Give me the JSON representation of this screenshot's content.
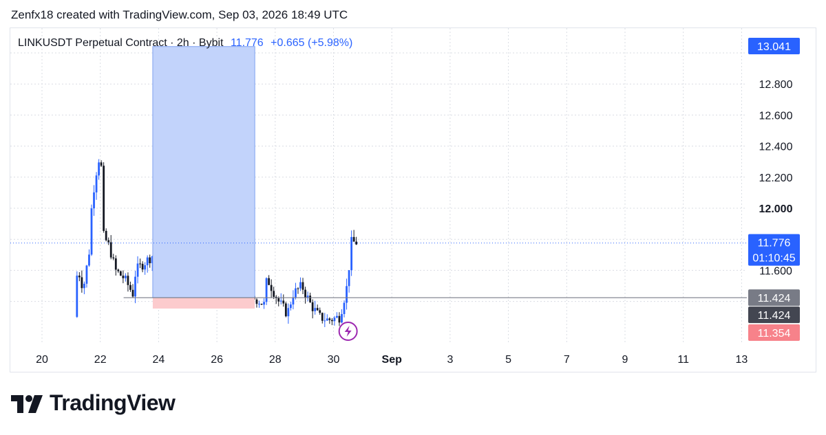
{
  "header": {
    "text": "Zenfx18 created with TradingView.com, Sep 03, 2026 18:49 UTC"
  },
  "legend": {
    "symbol": "LINKUSDT Perpetual Contract · 2h · Bybit",
    "last": "11.776",
    "change": "+0.665 (+5.98%)"
  },
  "brand": {
    "name": "TradingView",
    "icon": "tradingview-logo-icon"
  },
  "colors": {
    "up": "#2962ff",
    "down": "#131722",
    "target_zone": "#c2d3fb",
    "stop_zone": "#fccbcd",
    "grid": "#d9dce3",
    "price_line": "#2962ff"
  },
  "chart_data": {
    "type": "candlestick",
    "x_ticks": [
      "20",
      "22",
      "24",
      "26",
      "28",
      "30",
      "Sep",
      "3",
      "5",
      "7",
      "9",
      "11",
      "13"
    ],
    "y_ticks": [
      "12.800",
      "12.600",
      "12.400",
      "12.200",
      "12.000",
      "11.600"
    ],
    "ylim": [
      11.3,
      13.1
    ],
    "grid": true,
    "price_labels": [
      {
        "text": "13.041",
        "value": 13.041,
        "bg": "#2962ff",
        "fg": "#ffffff"
      },
      {
        "text": "11.776",
        "value": 11.776,
        "bg": "#2962ff",
        "fg": "#ffffff",
        "sub": "01:10:45"
      },
      {
        "text": "11.424",
        "value": 11.424,
        "bg": "#787b86",
        "fg": "#ffffff"
      },
      {
        "text": "11.424",
        "value": 11.424,
        "bg": "#434651",
        "fg": "#ffffff",
        "row": 2
      },
      {
        "text": "11.354",
        "value": 11.354,
        "bg": "#f7828a",
        "fg": "#ffffff"
      }
    ],
    "current_price": 11.776,
    "entry_price": 11.424,
    "position": {
      "entry": 11.424,
      "target": 13.041,
      "stop": 11.354,
      "x_start": 13.8,
      "x_end": 17.3
    },
    "keypoints": [
      {
        "t": 11.2,
        "v": 11.3
      },
      {
        "t": 11.3,
        "v": 11.62
      },
      {
        "t": 11.5,
        "v": 11.48
      },
      {
        "t": 11.7,
        "v": 11.72
      },
      {
        "t": 11.8,
        "v": 12.05
      },
      {
        "t": 12.0,
        "v": 12.3
      },
      {
        "t": 12.1,
        "v": 12.35
      },
      {
        "t": 12.2,
        "v": 11.82
      },
      {
        "t": 12.4,
        "v": 11.75
      },
      {
        "t": 12.6,
        "v": 11.6
      },
      {
        "t": 12.9,
        "v": 11.55
      },
      {
        "t": 13.2,
        "v": 11.45
      },
      {
        "t": 13.3,
        "v": 11.6
      },
      {
        "t": 13.6,
        "v": 11.65
      },
      {
        "t": 13.9,
        "v": 11.7
      },
      {
        "t": 14.3,
        "v": 11.62
      },
      {
        "t": 14.6,
        "v": 11.78
      },
      {
        "t": 14.9,
        "v": 11.55
      },
      {
        "t": 15.2,
        "v": 11.48
      },
      {
        "t": 15.5,
        "v": 11.6
      },
      {
        "t": 15.8,
        "v": 11.82
      },
      {
        "t": 16.0,
        "v": 11.9
      },
      {
        "t": 16.2,
        "v": 11.82
      },
      {
        "t": 16.5,
        "v": 11.62
      },
      {
        "t": 16.8,
        "v": 11.45
      },
      {
        "t": 17.1,
        "v": 11.4
      },
      {
        "t": 17.4,
        "v": 11.42
      },
      {
        "t": 17.7,
        "v": 11.38
      },
      {
        "t": 17.8,
        "v": 11.55
      },
      {
        "t": 18.2,
        "v": 11.4
      },
      {
        "t": 18.5,
        "v": 11.32
      },
      {
        "t": 18.7,
        "v": 11.45
      },
      {
        "t": 19.0,
        "v": 11.5
      },
      {
        "t": 19.3,
        "v": 11.38
      },
      {
        "t": 19.6,
        "v": 11.3
      },
      {
        "t": 19.9,
        "v": 11.28
      },
      {
        "t": 20.3,
        "v": 11.3
      },
      {
        "t": 20.55,
        "v": 11.5
      },
      {
        "t": 20.7,
        "v": 11.78
      },
      {
        "t": 20.85,
        "v": 11.78
      }
    ]
  }
}
